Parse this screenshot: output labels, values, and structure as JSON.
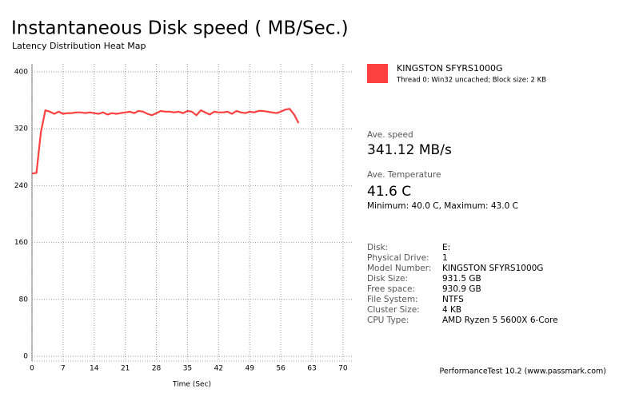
{
  "chart_data": {
    "type": "line",
    "title": "Instantaneous Disk speed ( MB/Sec.)",
    "subtitle": "Latency Distribution Heat Map",
    "x_label": "Time (Sec)",
    "x": [
      0,
      1,
      2,
      3,
      4,
      5,
      6,
      7,
      8,
      9,
      10,
      11,
      12,
      13,
      14,
      15,
      16,
      17,
      18,
      19,
      20,
      21,
      22,
      23,
      24,
      25,
      26,
      27,
      28,
      29,
      30,
      31,
      32,
      33,
      34,
      35,
      36,
      37,
      38,
      39,
      40,
      41,
      42,
      43,
      44,
      45,
      46,
      47,
      48,
      49,
      50,
      51,
      52,
      53,
      54,
      55,
      56,
      57,
      58,
      59,
      60
    ],
    "series": [
      {
        "name": "KINGSTON SFYRS1000G",
        "color": "#ff4040",
        "values": [
          257,
          258,
          315,
          346,
          344,
          341,
          344,
          341,
          342,
          342,
          343,
          343,
          342,
          343,
          342,
          341,
          343,
          340,
          342,
          341,
          342,
          343,
          344,
          342,
          345,
          344,
          341,
          339,
          342,
          345,
          344,
          344,
          343,
          344,
          342,
          345,
          344,
          339,
          346,
          343,
          340,
          344,
          343,
          343,
          344,
          341,
          345,
          343,
          342,
          344,
          343,
          345,
          345,
          344,
          343,
          342,
          344,
          347,
          348,
          340,
          328
        ]
      }
    ],
    "legend_note": "Thread 0: Win32 uncached; Block size: 2 KB",
    "xlim": [
      0,
      72
    ],
    "ylim": [
      0,
      400
    ],
    "xticks": [
      0,
      7,
      14,
      21,
      28,
      35,
      42,
      49,
      56,
      63,
      70
    ],
    "yticks": [
      0,
      80,
      160,
      240,
      320,
      400
    ],
    "grid": true
  },
  "panel": {
    "speed_label": "Ave. speed",
    "speed": "341.12 MB/s",
    "temp_label": "Ave. Temperature",
    "temp": "41.6 C",
    "temp_range": "Minimum: 40.0 C, Maximum: 43.0 C",
    "info": [
      [
        "Disk:",
        "E:"
      ],
      [
        "Physical Drive:",
        "1"
      ],
      [
        "Model Number:",
        "KINGSTON SFYRS1000G"
      ],
      [
        "Disk Size:",
        "931.5 GB"
      ],
      [
        "Free space:",
        "930.9 GB"
      ],
      [
        "File System:",
        "NTFS"
      ],
      [
        "Cluster Size:",
        "4 KB"
      ],
      [
        "CPU Type:",
        "AMD Ryzen 5 5600X 6-Core"
      ]
    ],
    "footer": "PerformanceTest 10.2 (www.passmark.com)"
  }
}
